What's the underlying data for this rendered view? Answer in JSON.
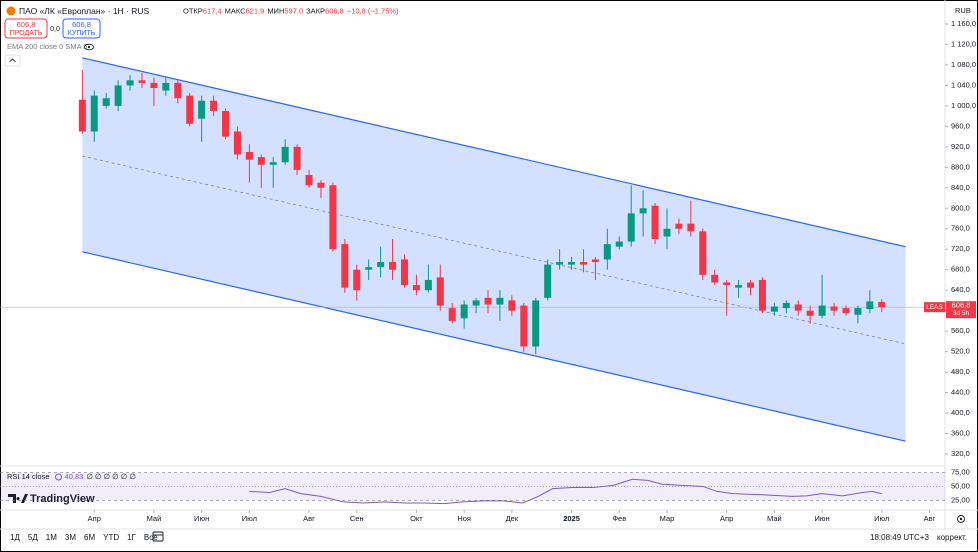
{
  "header": {
    "symbol": "ПАО «ЛК «Европлан» · 1Н · RUS",
    "ohlc": [
      {
        "label": "ОТКР",
        "value": "617,4"
      },
      {
        "label": "МАКС",
        "value": "621,9"
      },
      {
        "label": "МИН",
        "value": "597,0"
      },
      {
        "label": "ЗАКР",
        "value": "606,8"
      }
    ],
    "change": "−10,8 (−1,75%)",
    "sell": {
      "price": "606,8",
      "label": "ПРОДАТЬ"
    },
    "spread": "0,0",
    "buy": {
      "price": "606,8",
      "label": "КУПИТЬ"
    },
    "indicator": "EMA 200 close 0 SMA 5",
    "currency": "RUB"
  },
  "chart_data": {
    "type": "candlestick",
    "open": [
      1012,
      950,
      1000,
      1000,
      1040,
      1050,
      1045,
      1030,
      1045,
      1020,
      975,
      1010,
      990,
      950,
      910,
      900,
      885,
      890,
      920,
      865,
      850,
      845,
      730,
      680,
      680,
      685,
      695,
      700,
      650,
      640,
      665,
      605,
      585,
      610,
      625,
      612,
      620,
      610,
      530,
      625,
      690,
      690,
      695,
      700,
      700,
      725,
      735,
      790,
      805,
      745,
      770,
      770,
      755,
      670,
      655,
      645,
      655,
      660,
      598,
      605,
      612,
      600,
      590,
      608,
      605,
      592,
      603,
      617
    ],
    "high": [
      1070,
      1030,
      1025,
      1050,
      1060,
      1065,
      1055,
      1055,
      1050,
      1025,
      1020,
      1020,
      995,
      960,
      925,
      905,
      900,
      935,
      925,
      875,
      855,
      850,
      740,
      690,
      700,
      725,
      740,
      710,
      670,
      690,
      690,
      615,
      620,
      625,
      640,
      640,
      630,
      615,
      625,
      700,
      720,
      705,
      720,
      705,
      760,
      745,
      845,
      835,
      810,
      800,
      780,
      815,
      760,
      680,
      660,
      660,
      660,
      665,
      615,
      620,
      620,
      610,
      670,
      615,
      610,
      610,
      640,
      621.9
    ],
    "low": [
      945,
      930,
      995,
      990,
      1030,
      1035,
      1000,
      1020,
      1005,
      960,
      930,
      980,
      935,
      895,
      850,
      840,
      840,
      885,
      865,
      840,
      820,
      715,
      635,
      620,
      660,
      665,
      660,
      645,
      630,
      635,
      600,
      575,
      565,
      595,
      595,
      580,
      590,
      520,
      515,
      620,
      680,
      680,
      675,
      660,
      680,
      720,
      725,
      745,
      730,
      720,
      750,
      745,
      660,
      650,
      590,
      625,
      630,
      595,
      590,
      595,
      590,
      575,
      585,
      590,
      590,
      575,
      595,
      597
    ],
    "close": [
      950,
      1020,
      1015,
      1040,
      1050,
      1045,
      1035,
      1045,
      1015,
      965,
      1010,
      990,
      940,
      905,
      895,
      885,
      890,
      920,
      875,
      845,
      840,
      720,
      645,
      640,
      685,
      695,
      680,
      650,
      640,
      660,
      610,
      580,
      612,
      620,
      612,
      625,
      600,
      530,
      620,
      690,
      695,
      695,
      690,
      695,
      730,
      735,
      790,
      800,
      740,
      760,
      760,
      755,
      670,
      655,
      650,
      650,
      645,
      600,
      608,
      615,
      600,
      590,
      610,
      600,
      595,
      605,
      618,
      606.8
    ],
    "up_color": "#089981",
    "down_color": "#f23645",
    "xlim": [
      -6.9,
      72.3
    ],
    "xticks": [
      {
        "value": 1,
        "label": "Апр"
      },
      {
        "value": 6,
        "label": "Май"
      },
      {
        "value": 10,
        "label": "Июн"
      },
      {
        "value": 14,
        "label": "Июл"
      },
      {
        "value": 19,
        "label": "Авг"
      },
      {
        "value": 23,
        "label": "Сен"
      },
      {
        "value": 28,
        "label": "Окт"
      },
      {
        "value": 32,
        "label": "Ноя"
      },
      {
        "value": 36,
        "label": "Дек"
      },
      {
        "value": 41,
        "label": "2025"
      },
      {
        "value": 45,
        "label": "Фев"
      },
      {
        "value": 49,
        "label": "Мар"
      },
      {
        "value": 54,
        "label": "Апр"
      },
      {
        "value": 58,
        "label": "Май"
      },
      {
        "value": 62,
        "label": "Июн"
      },
      {
        "value": 67,
        "label": "Июл"
      },
      {
        "value": 71,
        "label": "Авг"
      }
    ],
    "ylim": [
      298.5,
      1163.9
    ],
    "yticks": [
      {
        "value": 1160,
        "label": "1 160,0"
      },
      {
        "value": 1120,
        "label": "1 120,0"
      },
      {
        "value": 1080,
        "label": "1 080,0"
      },
      {
        "value": 1040,
        "label": "1 040,0"
      },
      {
        "value": 1000,
        "label": "1 000,0"
      },
      {
        "value": 960,
        "label": "960,0"
      },
      {
        "value": 920,
        "label": "920,0"
      },
      {
        "value": 880,
        "label": "880,0"
      },
      {
        "value": 840,
        "label": "840,0"
      },
      {
        "value": 800,
        "label": "800,0"
      },
      {
        "value": 760,
        "label": "760,0"
      },
      {
        "value": 720,
        "label": "720,0"
      },
      {
        "value": 680,
        "label": "680,0"
      },
      {
        "value": 640,
        "label": "640,0"
      },
      {
        "value": 600,
        "label": "600,0"
      },
      {
        "value": 560,
        "label": "560,0"
      },
      {
        "value": 520,
        "label": "520,0"
      },
      {
        "value": 480,
        "label": "480,0"
      },
      {
        "value": 440,
        "label": "440,0"
      },
      {
        "value": 400,
        "label": "400,0"
      },
      {
        "value": 360,
        "label": "360,0"
      },
      {
        "value": 320,
        "label": "320,0"
      }
    ],
    "channel": {
      "x": [
        0,
        69
      ],
      "upper": [
        1094,
        725
      ],
      "middle": [
        902,
        535
      ],
      "lower": [
        715,
        345
      ],
      "color": "#2962ff"
    },
    "last_price": {
      "symbol": "LEAS",
      "label": "606,8",
      "countdown": "3d 5h"
    },
    "rsi": {
      "label": "RSI 14 close",
      "value": "40,83",
      "extras": "∅ ∅ ∅ ∅ ∅ ∅",
      "color": "#7e57c2",
      "x": [
        14,
        15.7,
        17,
        18.3,
        20,
        21.9,
        23.6,
        25.3,
        27,
        28.6,
        30.3,
        31.9,
        33.6,
        35.3,
        36.9,
        38.2,
        39.4,
        41.1,
        42.8,
        44.5,
        46.1,
        47.4,
        48.6,
        50.3,
        52,
        53.2,
        54.5,
        57,
        59.5,
        60.7,
        62,
        63.7,
        65.4,
        66.2,
        67
      ],
      "values": [
        41,
        39,
        46,
        37,
        32,
        22,
        20,
        22,
        20,
        20,
        19,
        22,
        24,
        24,
        20,
        32,
        46,
        48,
        48,
        52,
        63,
        61,
        54,
        52,
        50,
        41,
        37,
        35,
        32,
        33,
        37,
        33,
        39,
        41,
        37
      ],
      "ylim": [
        7.4,
        85.2
      ],
      "yticks": [
        {
          "value": 75,
          "label": "75,00"
        },
        {
          "value": 50,
          "label": "50,00"
        },
        {
          "value": 25,
          "label": "25,00"
        }
      ]
    }
  },
  "toolbar": {
    "ranges": [
      "1Д",
      "5Д",
      "1М",
      "3М",
      "6М",
      "YTD",
      "1Г",
      "Все"
    ],
    "time": "18:08:49 UTC+3",
    "adjust": "коррект."
  },
  "logo": "TradingView"
}
